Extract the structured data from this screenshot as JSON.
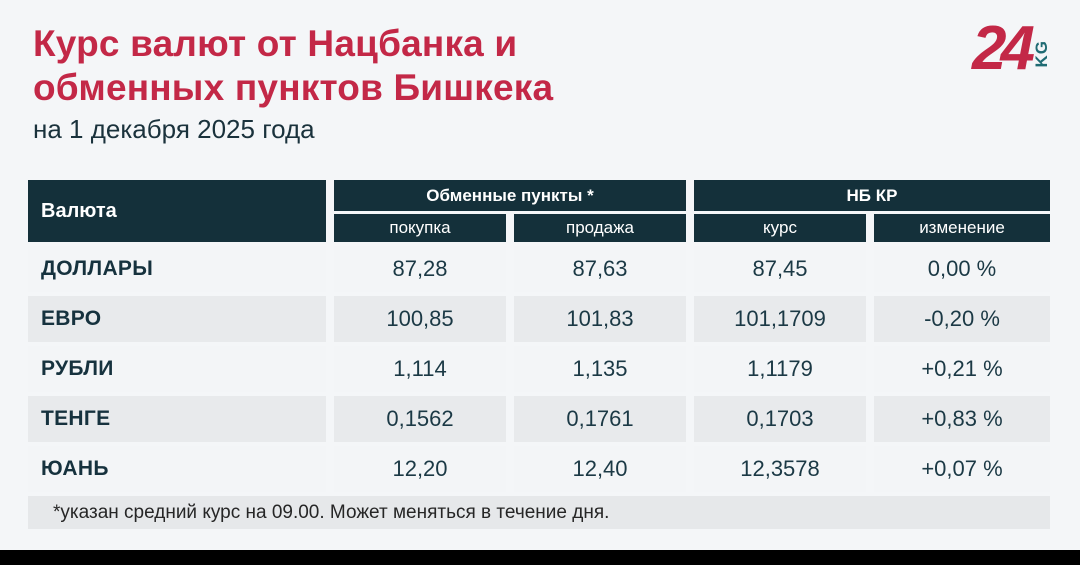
{
  "colors": {
    "accent_red": "#c32847",
    "header_dark": "#14303a",
    "kg_teal": "#1f6b73",
    "page_bg": "#f4f6f8",
    "row_gray": "#e8eaec"
  },
  "header": {
    "title_line1": "Курс валют от Нацбанка и",
    "title_line2": "обменных пунктов Бишкека",
    "subtitle": "на 1 декабря 2025 года",
    "logo": {
      "number": "24",
      "suffix": "KG"
    }
  },
  "table": {
    "col_currency": "Валюта",
    "group_exchange": "Обменные пункты *",
    "group_nbkr": "НБ КР",
    "subcols": [
      "покупка",
      "продажа",
      "курс",
      "изменение"
    ],
    "rows": [
      {
        "name": "ДОЛЛАРЫ",
        "buy": "87,28",
        "sell": "87,63",
        "rate": "87,45",
        "change": "0,00 %"
      },
      {
        "name": "ЕВРО",
        "buy": "100,85",
        "sell": "101,83",
        "rate": "101,1709",
        "change": "-0,20 %"
      },
      {
        "name": "РУБЛИ",
        "buy": "1,114",
        "sell": "1,135",
        "rate": "1,1179",
        "change": "+0,21 %"
      },
      {
        "name": "ТЕНГЕ",
        "buy": "0,1562",
        "sell": "0,1761",
        "rate": "0,1703",
        "change": "+0,83 %"
      },
      {
        "name": "ЮАНЬ",
        "buy": "12,20",
        "sell": "12,40",
        "rate": "12,3578",
        "change": "+0,07 %"
      }
    ],
    "footnote": "*указан средний курс на 09.00. Может меняться в течение дня."
  },
  "chart_data": {
    "type": "table",
    "title": "Курс валют от Нацбанка и обменных пунктов Бишкека",
    "subtitle": "на 1 декабря 2025 года",
    "column_groups": [
      "Обменные пункты *",
      "НБ КР"
    ],
    "columns": [
      "Валюта",
      "покупка",
      "продажа",
      "курс",
      "изменение"
    ],
    "rows": [
      [
        "ДОЛЛАРЫ",
        "87,28",
        "87,63",
        "87,45",
        "0,00 %"
      ],
      [
        "ЕВРО",
        "100,85",
        "101,83",
        "101,1709",
        "-0,20 %"
      ],
      [
        "РУБЛИ",
        "1,114",
        "1,135",
        "1,1179",
        "+0,21 %"
      ],
      [
        "ТЕНГЕ",
        "0,1562",
        "0,1761",
        "0,1703",
        "+0,83 %"
      ],
      [
        "ЮАНЬ",
        "12,20",
        "12,40",
        "12,3578",
        "+0,07 %"
      ]
    ],
    "footnote": "*указан средний курс на 09.00. Может меняться в течение дня."
  }
}
